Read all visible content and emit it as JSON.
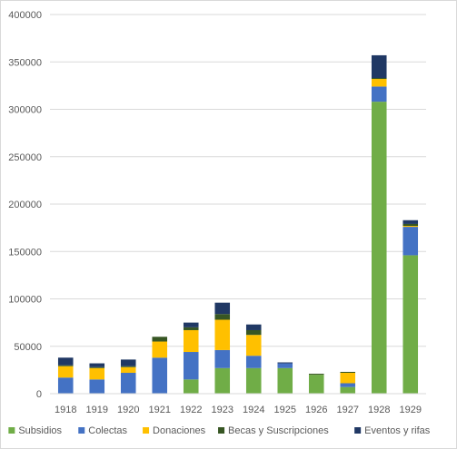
{
  "chart_data": {
    "type": "bar",
    "stacked": true,
    "categories": [
      "1918",
      "1919",
      "1920",
      "1921",
      "1922",
      "1923",
      "1924",
      "1925",
      "1926",
      "1927",
      "1928",
      "1929"
    ],
    "ylim": [
      0,
      400000
    ],
    "yticks": [
      0,
      50000,
      100000,
      150000,
      200000,
      250000,
      300000,
      350000,
      400000
    ],
    "grid": true,
    "legend_position": "bottom",
    "series": [
      {
        "name": "Subsidios",
        "color": "#70ad47",
        "values": [
          0,
          0,
          0,
          0,
          15000,
          27000,
          27000,
          27000,
          20000,
          7000,
          308000,
          146000
        ]
      },
      {
        "name": "Colectas",
        "color": "#4472c4",
        "values": [
          17000,
          15000,
          22000,
          38000,
          29000,
          19000,
          13000,
          5000,
          0,
          4000,
          16000,
          30000
        ]
      },
      {
        "name": "Donaciones",
        "color": "#ffc000",
        "values": [
          12000,
          12000,
          6000,
          17000,
          23000,
          32000,
          22000,
          0,
          0,
          11000,
          8000,
          1000
        ]
      },
      {
        "name": "Becas y Suscripciones",
        "color": "#375623",
        "values": [
          1000,
          1000,
          1000,
          5000,
          3000,
          6000,
          5000,
          0,
          1000,
          1000,
          1000,
          2000
        ]
      },
      {
        "name": "Eventos y rifas",
        "color": "#203864",
        "values": [
          8000,
          4000,
          7000,
          0,
          5000,
          12000,
          6000,
          1000,
          0,
          0,
          24000,
          4000
        ]
      }
    ]
  }
}
